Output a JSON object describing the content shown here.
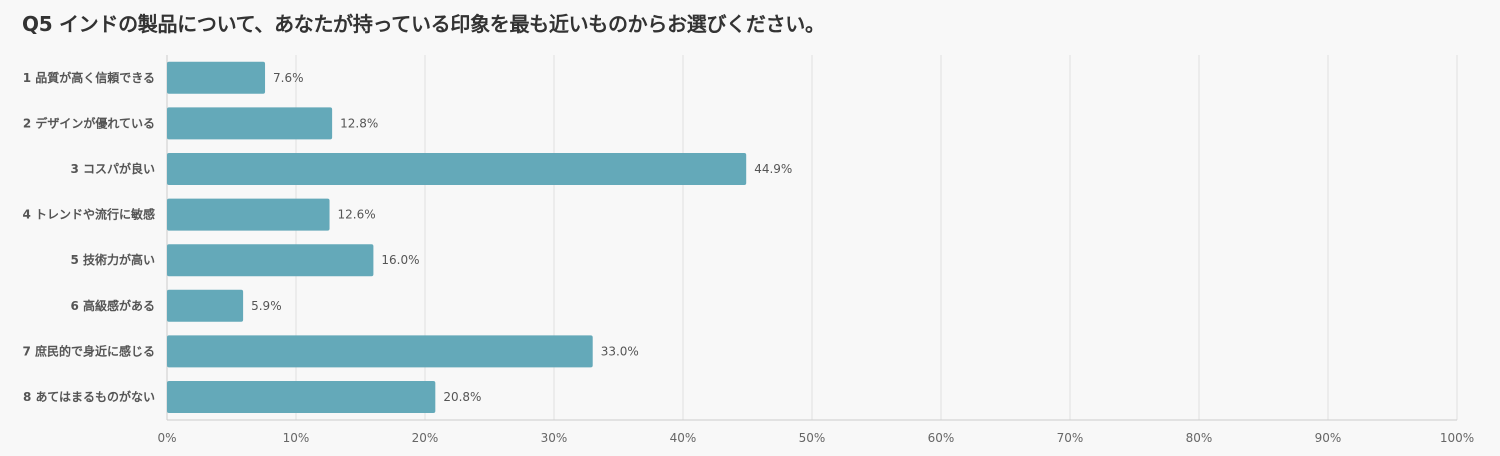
{
  "chart_data": {
    "type": "bar",
    "orientation": "horizontal",
    "title": "Q5 インドの製品について、あなたが持っている印象を最も近いものからお選びください。",
    "categories": [
      "1 品質が高く信頼できる",
      "2 デザインが優れている",
      "3 コスパが良い",
      "4 トレンドや流行に敏感",
      "5 技術力が高い",
      "6 高級感がある",
      "7 庶民的で身近に感じる",
      "8 あてはまるものがない"
    ],
    "values": [
      7.6,
      12.8,
      44.9,
      12.6,
      16.0,
      5.9,
      33.0,
      20.8
    ],
    "value_labels": [
      "7.6%",
      "12.8%",
      "44.9%",
      "12.6%",
      "16.0%",
      "5.9%",
      "33.0%",
      "20.8%"
    ],
    "xlim": [
      0,
      100
    ],
    "x_ticks": [
      0,
      10,
      20,
      30,
      40,
      50,
      60,
      70,
      80,
      90,
      100
    ],
    "x_tick_labels": [
      "0%",
      "10%",
      "20%",
      "30%",
      "40%",
      "50%",
      "60%",
      "70%",
      "80%",
      "90%",
      "100%"
    ],
    "grid": true,
    "bar_color": "#64a9b9",
    "grid_color": "#e0e0e0"
  }
}
